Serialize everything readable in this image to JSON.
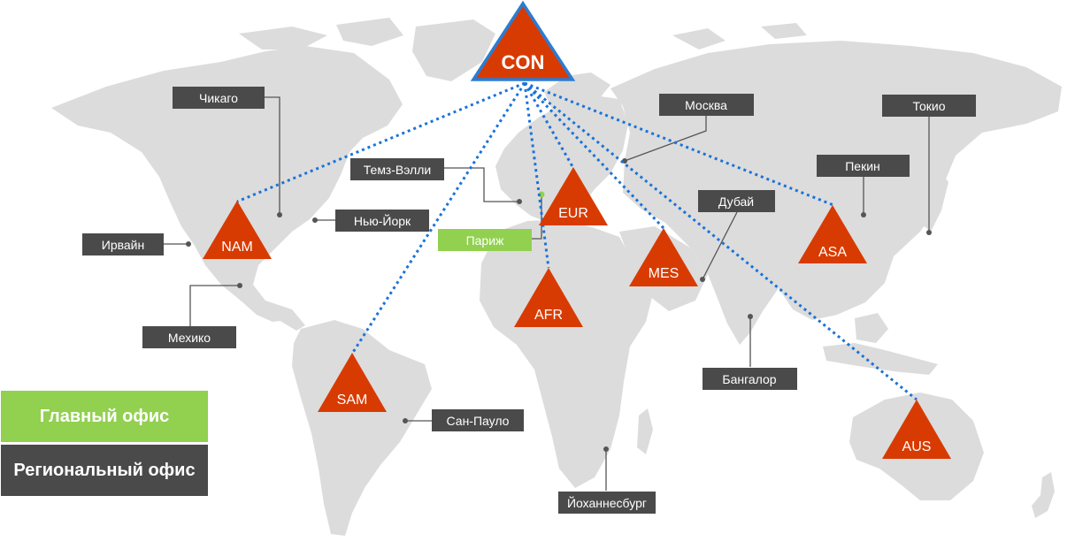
{
  "central_hub": {
    "label": "CON"
  },
  "regions": [
    {
      "id": "nam",
      "label": "NAM"
    },
    {
      "id": "eur",
      "label": "EUR"
    },
    {
      "id": "mes",
      "label": "MES"
    },
    {
      "id": "asa",
      "label": "ASA"
    },
    {
      "id": "afr",
      "label": "AFR"
    },
    {
      "id": "sam",
      "label": "SAM"
    },
    {
      "id": "aus",
      "label": "AUS"
    }
  ],
  "cities": [
    {
      "id": "chicago",
      "label": "Чикаго",
      "type": "regional"
    },
    {
      "id": "new-york",
      "label": "Нью-Йорк",
      "type": "regional"
    },
    {
      "id": "irvine",
      "label": "Ирвайн",
      "type": "regional"
    },
    {
      "id": "mexico",
      "label": "Мехико",
      "type": "regional"
    },
    {
      "id": "thames-valley",
      "label": "Темз-Вэлли",
      "type": "regional"
    },
    {
      "id": "paris",
      "label": "Париж",
      "type": "main"
    },
    {
      "id": "moscow",
      "label": "Москва",
      "type": "regional"
    },
    {
      "id": "dubai",
      "label": "Дубай",
      "type": "regional"
    },
    {
      "id": "beijing",
      "label": "Пекин",
      "type": "regional"
    },
    {
      "id": "tokyo",
      "label": "Токио",
      "type": "regional"
    },
    {
      "id": "bangalore",
      "label": "Бангалор",
      "type": "regional"
    },
    {
      "id": "sao-paulo",
      "label": "Сан-Пауло",
      "type": "regional"
    },
    {
      "id": "johannesburg",
      "label": "Йоханнесбург",
      "type": "regional"
    }
  ],
  "legend": {
    "main_office": "Главный офис",
    "regional_office": "Региональный офис"
  },
  "colors": {
    "land": "#dcdcdc",
    "hub_fill": "#d83b01",
    "hub_border": "#2b7cd3",
    "connector": "#1a73d9",
    "regional_label": "#4a4a4a",
    "main_label": "#92d050",
    "leader_line": "#555555"
  }
}
